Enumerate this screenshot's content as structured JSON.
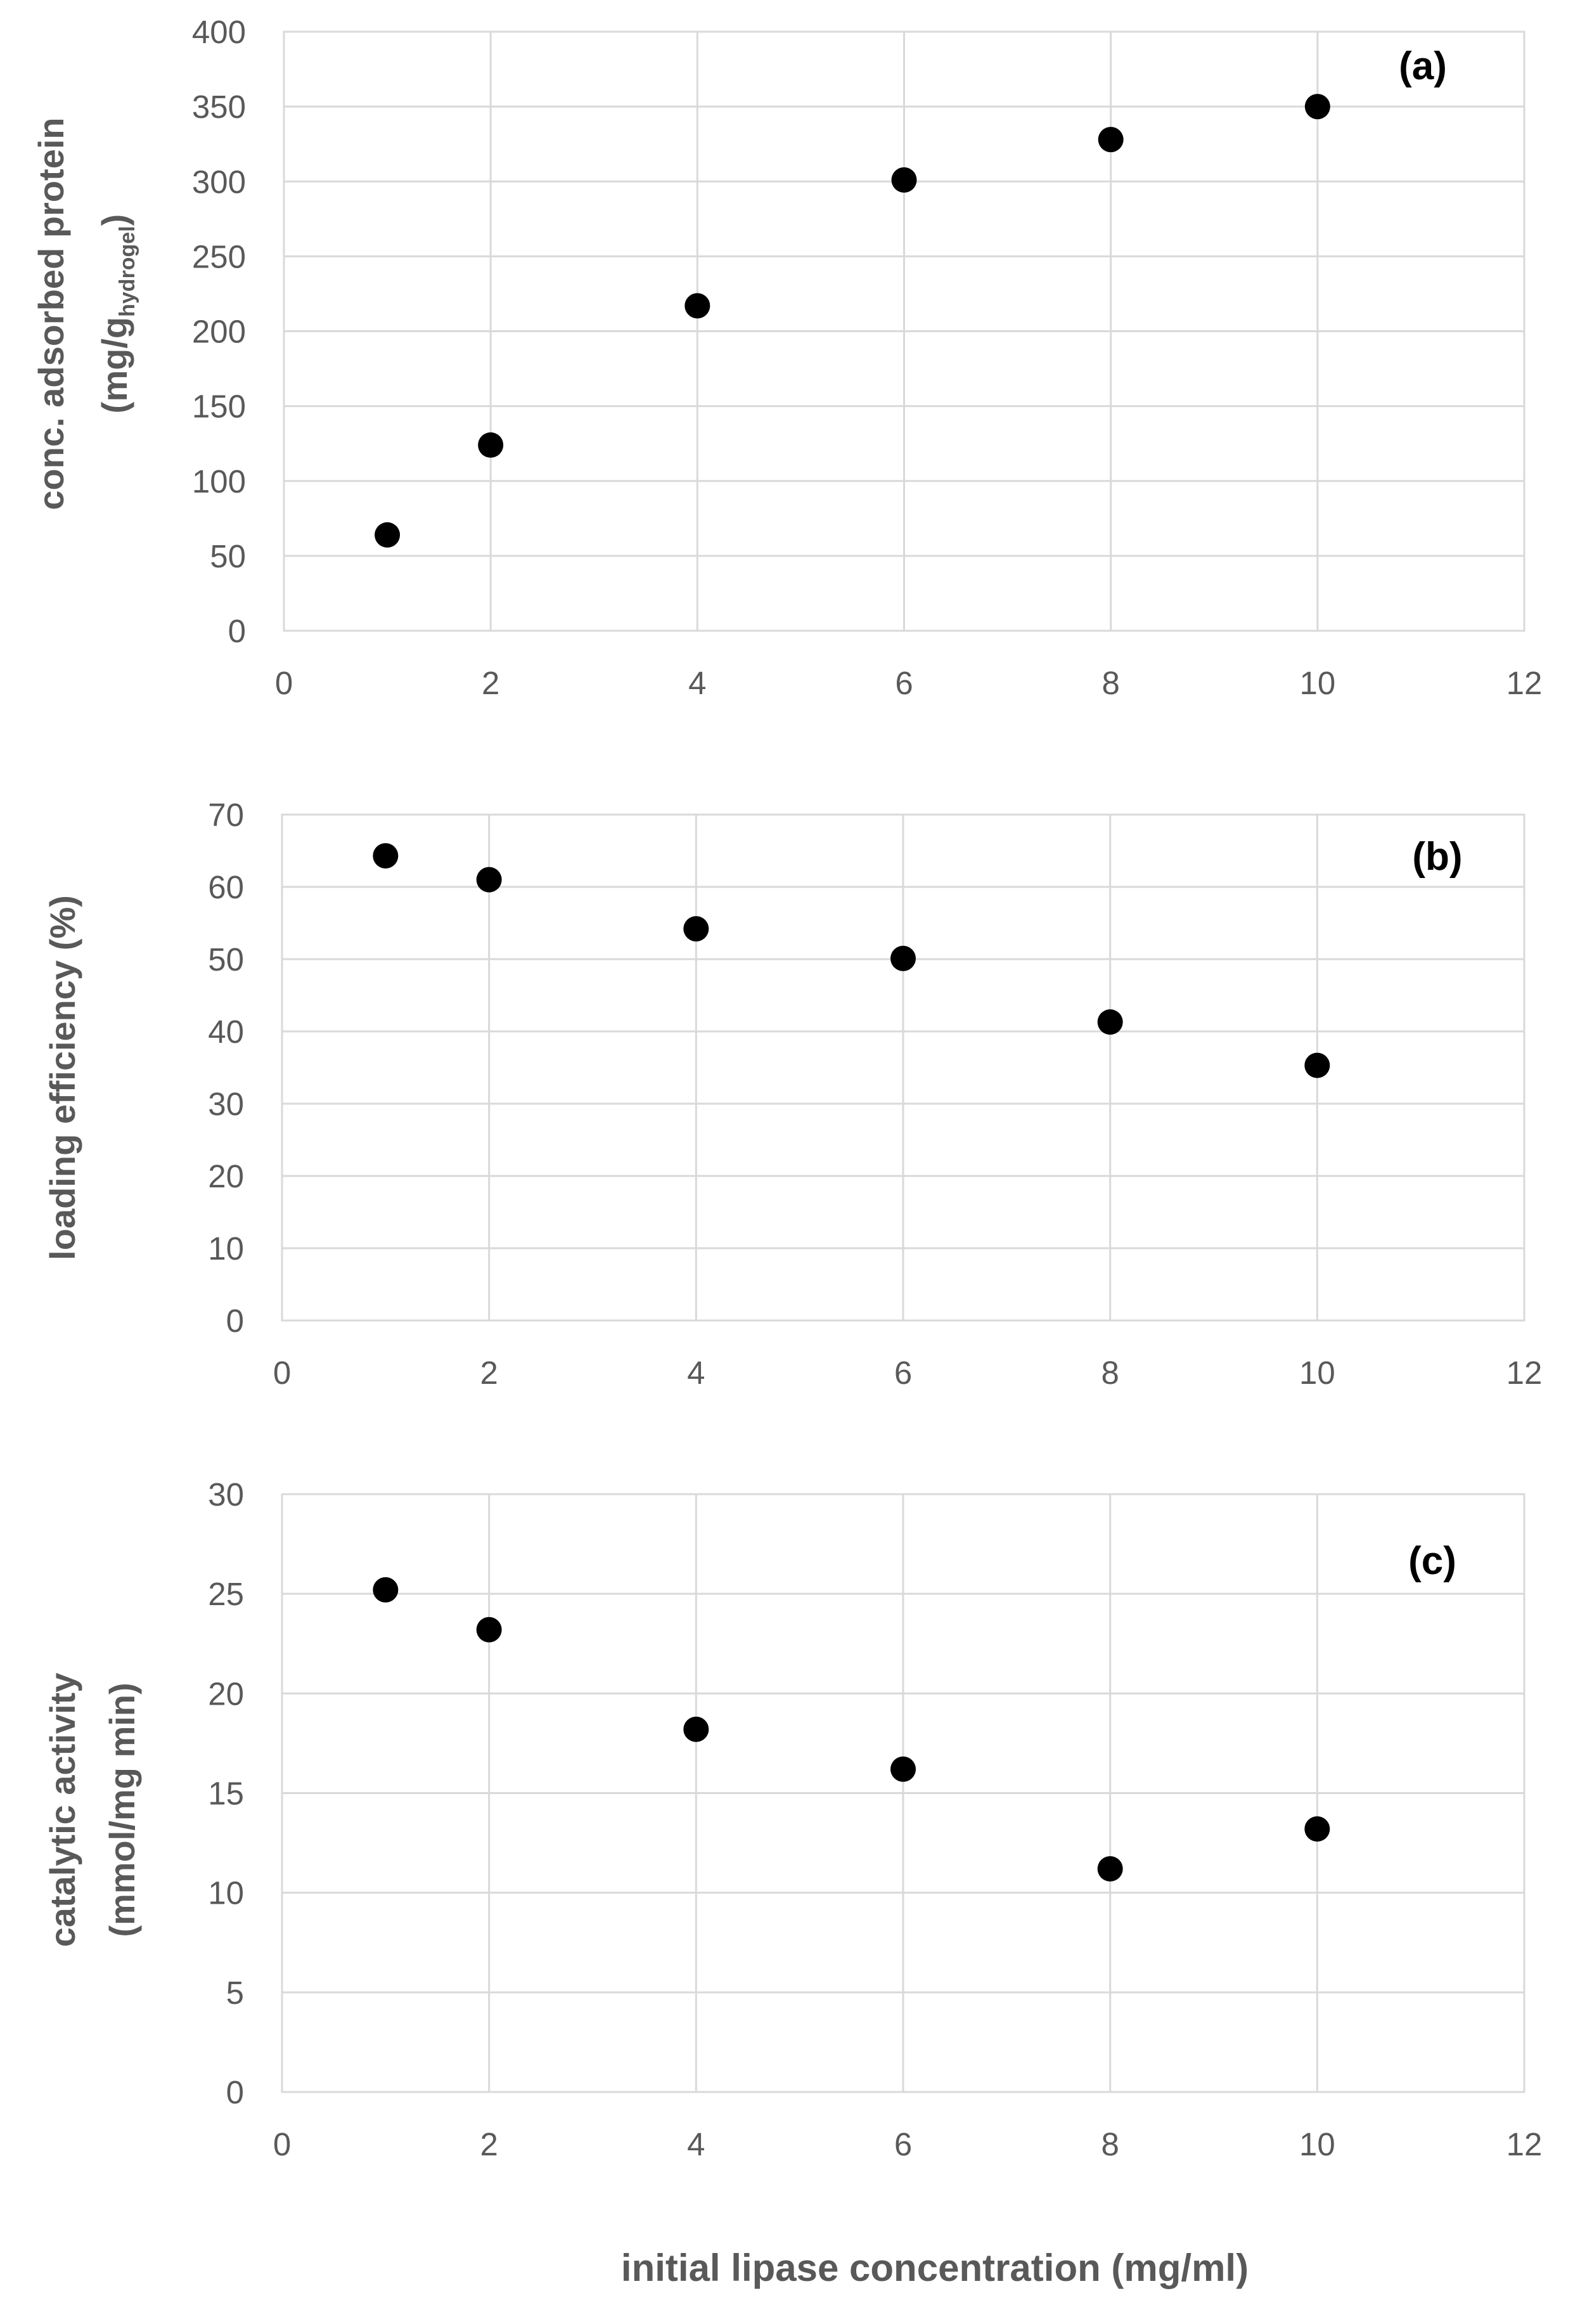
{
  "figure": {
    "xlabel": "initial lipase concentration (mg/ml)"
  },
  "chart_data": [
    {
      "type": "scatter",
      "panel_label": "(a)",
      "ylabel_line1": "conc. adsorbed protein",
      "ylabel_line2_main": "(mg/g",
      "ylabel_line2_sub": "hydrogel",
      "ylabel_line2_end": ")",
      "xlim": [
        0,
        12
      ],
      "ylim": [
        0,
        400
      ],
      "xticks": [
        0,
        2,
        4,
        6,
        8,
        10,
        12
      ],
      "yticks": [
        0,
        50,
        100,
        150,
        200,
        250,
        300,
        350,
        400
      ],
      "grid": true,
      "x": [
        1,
        2,
        4,
        6,
        8,
        10
      ],
      "y": [
        64,
        124,
        217,
        301,
        328,
        350
      ]
    },
    {
      "type": "scatter",
      "panel_label": "(b)",
      "ylabel_line1": "loading efficiency (%)",
      "xlim": [
        0,
        12
      ],
      "ylim": [
        0,
        70
      ],
      "xticks": [
        0,
        2,
        4,
        6,
        8,
        10,
        12
      ],
      "yticks": [
        0,
        10,
        20,
        30,
        40,
        50,
        60,
        70
      ],
      "grid": true,
      "x": [
        1,
        2,
        4,
        6,
        8,
        10
      ],
      "y": [
        64.3,
        61,
        54.2,
        50.1,
        41.3,
        35.3
      ]
    },
    {
      "type": "scatter",
      "panel_label": "(c)",
      "ylabel_line1": "catalytic activity",
      "ylabel_line2_main": "(mmol/mg min)",
      "xlim": [
        0,
        12
      ],
      "ylim": [
        0,
        30
      ],
      "xticks": [
        0,
        2,
        4,
        6,
        8,
        10,
        12
      ],
      "yticks": [
        0,
        5,
        10,
        15,
        20,
        25,
        30
      ],
      "grid": true,
      "x": [
        1,
        2,
        4,
        6,
        8,
        10
      ],
      "y": [
        25.2,
        23.2,
        18.2,
        16.2,
        11.2,
        13.2
      ]
    }
  ]
}
